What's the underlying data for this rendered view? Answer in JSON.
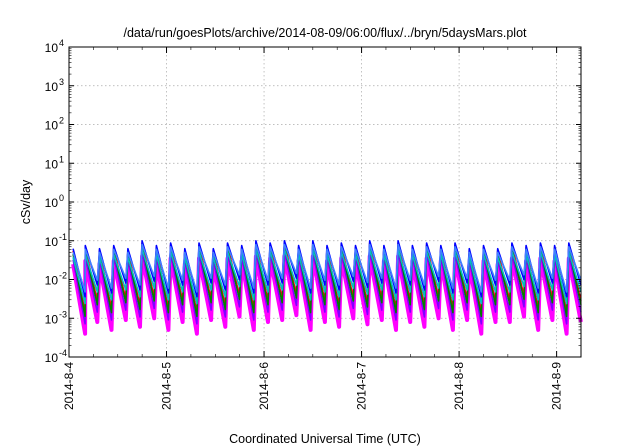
{
  "chart_data": {
    "type": "line",
    "title": "/data/run/goesPlots/archive/2014-08-09/06:00/flux/../bryn/5daysMars.plot",
    "xlabel": "Coordinated Universal Time (UTC)",
    "ylabel": "cSv/day",
    "yscale": "log",
    "ylim": [
      0.0001,
      10000
    ],
    "xlim": [
      "2014-08-04T00:00",
      "2014-08-09T06:00"
    ],
    "grid": true,
    "legend": "none",
    "x_tick_labels": [
      "2014-8-4",
      "2014-8-5",
      "2014-8-6",
      "2014-8-7",
      "2014-8-8",
      "2014-8-9"
    ],
    "x_ticks": [
      "2014-08-04T00:00",
      "2014-08-05T00:00",
      "2014-08-06T00:00",
      "2014-08-07T00:00",
      "2014-08-08T00:00",
      "2014-08-09T00:00"
    ],
    "y_ticks": [
      {
        "value": 0.0001,
        "base": "10",
        "exp": "-4"
      },
      {
        "value": 0.001,
        "base": "10",
        "exp": "-3"
      },
      {
        "value": 0.01,
        "base": "10",
        "exp": "-2"
      },
      {
        "value": 0.1,
        "base": "10",
        "exp": "-1"
      },
      {
        "value": 1,
        "base": "10",
        "exp": "0"
      },
      {
        "value": 10,
        "base": "10",
        "exp": "1"
      },
      {
        "value": 100,
        "base": "10",
        "exp": "2"
      },
      {
        "value": 1000,
        "base": "10",
        "exp": "3"
      },
      {
        "value": 10000,
        "base": "10",
        "exp": "4"
      }
    ],
    "series": [
      {
        "color": "#ff00ff",
        "peaks": [
          [
            "2014-08-04T01:00",
            0.025
          ],
          [
            "2014-08-04T04:00",
            0.03
          ],
          [
            "2014-08-04T07:30",
            0.025
          ],
          [
            "2014-08-04T11:00",
            0.03
          ],
          [
            "2014-08-04T14:30",
            0.025
          ],
          [
            "2014-08-04T18:00",
            0.04
          ],
          [
            "2014-08-04T21:30",
            0.03
          ],
          [
            "2014-08-05T01:00",
            0.035
          ],
          [
            "2014-08-05T04:30",
            0.025
          ],
          [
            "2014-08-05T08:00",
            0.035
          ],
          [
            "2014-08-05T11:30",
            0.025
          ],
          [
            "2014-08-05T15:00",
            0.035
          ],
          [
            "2014-08-05T18:30",
            0.03
          ],
          [
            "2014-08-05T22:00",
            0.04
          ],
          [
            "2014-08-06T01:30",
            0.035
          ],
          [
            "2014-08-06T05:00",
            0.04
          ],
          [
            "2014-08-06T08:30",
            0.03
          ],
          [
            "2014-08-06T12:00",
            0.04
          ],
          [
            "2014-08-06T15:30",
            0.03
          ],
          [
            "2014-08-06T19:00",
            0.035
          ],
          [
            "2014-08-06T22:30",
            0.03
          ],
          [
            "2014-08-07T02:00",
            0.04
          ],
          [
            "2014-08-07T05:30",
            0.03
          ],
          [
            "2014-08-07T09:00",
            0.04
          ],
          [
            "2014-08-07T12:30",
            0.03
          ],
          [
            "2014-08-07T16:00",
            0.035
          ],
          [
            "2014-08-07T19:30",
            0.03
          ],
          [
            "2014-08-07T23:00",
            0.035
          ],
          [
            "2014-08-08T02:30",
            0.025
          ],
          [
            "2014-08-08T06:00",
            0.03
          ],
          [
            "2014-08-08T09:30",
            0.025
          ],
          [
            "2014-08-08T13:00",
            0.035
          ],
          [
            "2014-08-08T16:30",
            0.03
          ],
          [
            "2014-08-08T20:00",
            0.035
          ],
          [
            "2014-08-08T23:30",
            0.03
          ],
          [
            "2014-08-09T03:00",
            0.035
          ]
        ],
        "troughs": [
          0.0004,
          0.0008,
          0.0005,
          0.0009,
          0.0006,
          0.001,
          0.0005,
          0.0008,
          0.0004,
          0.0009,
          0.0006,
          0.0011,
          0.0005,
          0.0008,
          0.0009,
          0.0012,
          0.0005,
          0.0008,
          0.0006,
          0.001,
          0.0007,
          0.0009,
          0.0005,
          0.0008,
          0.0006,
          0.001,
          0.0005,
          0.0009,
          0.0004,
          0.0008,
          0.0008,
          0.0011,
          0.0005,
          0.0009,
          0.0004,
          0.0008
        ]
      },
      {
        "color": "#8000ff",
        "scale": 1.3,
        "trough_scale": 1.8
      },
      {
        "color": "#ff0000",
        "scale": 2.2,
        "trough_scale": 3.5
      },
      {
        "color": "#008000",
        "scale": 1.8,
        "trough_scale": 2.8
      },
      {
        "color": "#00c0c0",
        "scale": 1.5,
        "trough_scale": 6.0
      },
      {
        "color": "#0000ff",
        "scale": 2.5,
        "trough_scale": 9.0
      },
      {
        "color": "#4080ff",
        "scale": 2.0,
        "trough_scale": 12.0
      }
    ]
  }
}
